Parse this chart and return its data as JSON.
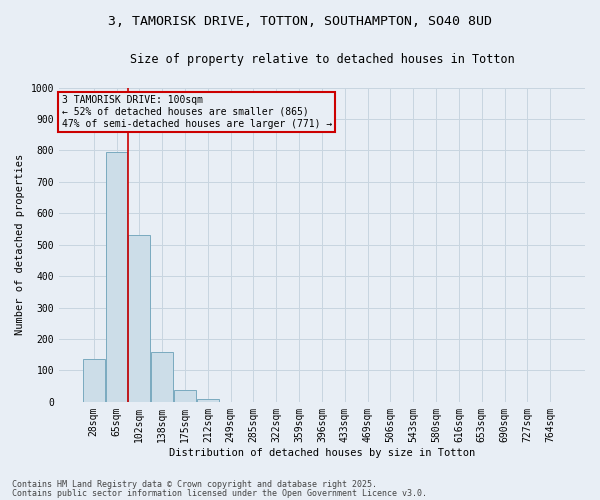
{
  "title_line1": "3, TAMORISK DRIVE, TOTTON, SOUTHAMPTON, SO40 8UD",
  "title_line2": "Size of property relative to detached houses in Totton",
  "xlabel": "Distribution of detached houses by size in Totton",
  "ylabel": "Number of detached properties",
  "categories": [
    "28sqm",
    "65sqm",
    "102sqm",
    "138sqm",
    "175sqm",
    "212sqm",
    "249sqm",
    "285sqm",
    "322sqm",
    "359sqm",
    "396sqm",
    "433sqm",
    "469sqm",
    "506sqm",
    "543sqm",
    "580sqm",
    "616sqm",
    "653sqm",
    "690sqm",
    "727sqm",
    "764sqm"
  ],
  "bar_heights": [
    135,
    795,
    530,
    160,
    38,
    10,
    0,
    0,
    0,
    0,
    0,
    0,
    0,
    0,
    0,
    0,
    0,
    0,
    0,
    0,
    0
  ],
  "bar_color": "#ccdde8",
  "bar_edge_color": "#7aaabf",
  "bar_edge_width": 0.7,
  "grid_color": "#c8d5e0",
  "background_color": "#e8eef5",
  "ylim": [
    0,
    1000
  ],
  "yticks": [
    0,
    100,
    200,
    300,
    400,
    500,
    600,
    700,
    800,
    900,
    1000
  ],
  "vline_color": "#cc0000",
  "vline_pos": 1.5,
  "annotation_text_line1": "3 TAMORISK DRIVE: 100sqm",
  "annotation_text_line2": "← 52% of detached houses are smaller (865)",
  "annotation_text_line3": "47% of semi-detached houses are larger (771) →",
  "annotation_box_color": "#cc0000",
  "annotation_text_color": "#000000",
  "footnote_line1": "Contains HM Land Registry data © Crown copyright and database right 2025.",
  "footnote_line2": "Contains public sector information licensed under the Open Government Licence v3.0.",
  "title_fontsize": 9.5,
  "subtitle_fontsize": 8.5,
  "axis_label_fontsize": 7.5,
  "tick_fontsize": 7,
  "annotation_fontsize": 7,
  "footnote_fontsize": 6
}
